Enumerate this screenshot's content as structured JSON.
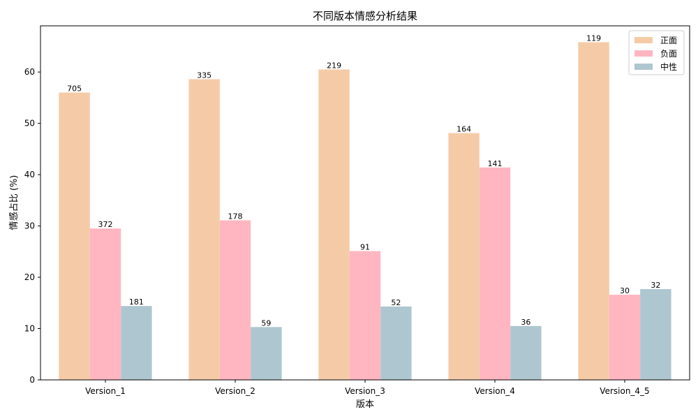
{
  "chart_data": {
    "type": "bar",
    "title": "不同版本情感分析结果",
    "xlabel": "版本",
    "ylabel": "情感占比 (%)",
    "ylim": [
      0,
      69
    ],
    "yticks": [
      0,
      10,
      20,
      30,
      40,
      50,
      60
    ],
    "grid": false,
    "legend_position": "top-right",
    "categories": [
      "Version_1",
      "Version_2",
      "Version_3",
      "Version_4",
      "Version_4_5"
    ],
    "series": [
      {
        "name": "正面",
        "color": "#F5CBA7",
        "values": [
          56.0,
          58.6,
          60.5,
          48.1,
          65.8
        ],
        "labels": [
          "705",
          "335",
          "219",
          "164",
          "119"
        ]
      },
      {
        "name": "负面",
        "color": "#FFB6C1",
        "values": [
          29.5,
          31.1,
          25.1,
          41.4,
          16.6
        ],
        "labels": [
          "372",
          "178",
          "91",
          "141",
          "30"
        ]
      },
      {
        "name": "中性",
        "color": "#AEC6CF",
        "values": [
          14.4,
          10.3,
          14.3,
          10.5,
          17.7
        ],
        "labels": [
          "181",
          "59",
          "52",
          "36",
          "32"
        ]
      }
    ]
  }
}
